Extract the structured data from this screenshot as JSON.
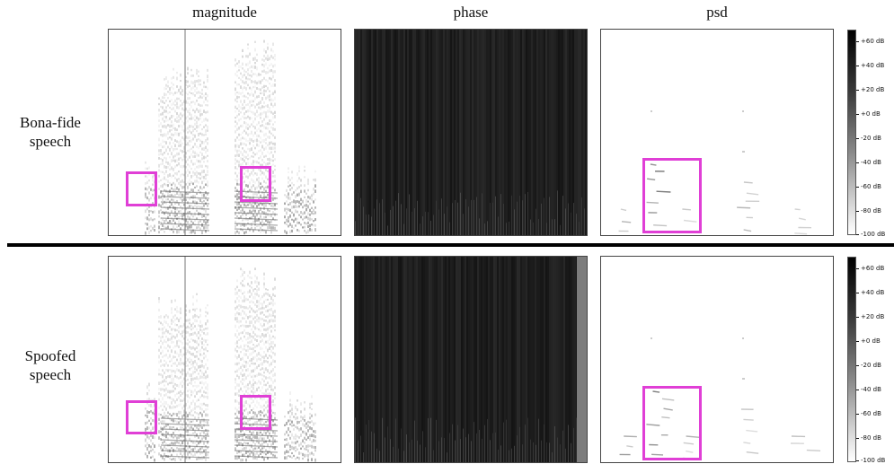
{
  "columns": [
    "magnitude",
    "phase",
    "psd"
  ],
  "rows": [
    {
      "label_line1": "Bona-fide",
      "label_line2": "speech"
    },
    {
      "label_line1": "Spoofed",
      "label_line2": "speech"
    }
  ],
  "colorbar": {
    "ticks": [
      "+60 dB",
      "+40 dB",
      "+20 dB",
      "+0 dB",
      "-20 dB",
      "-40 dB",
      "-60 dB",
      "-80 dB",
      "-100 dB"
    ]
  },
  "colors": {
    "highlight_box": "#e03fd6",
    "phase_background": "#161616"
  }
}
